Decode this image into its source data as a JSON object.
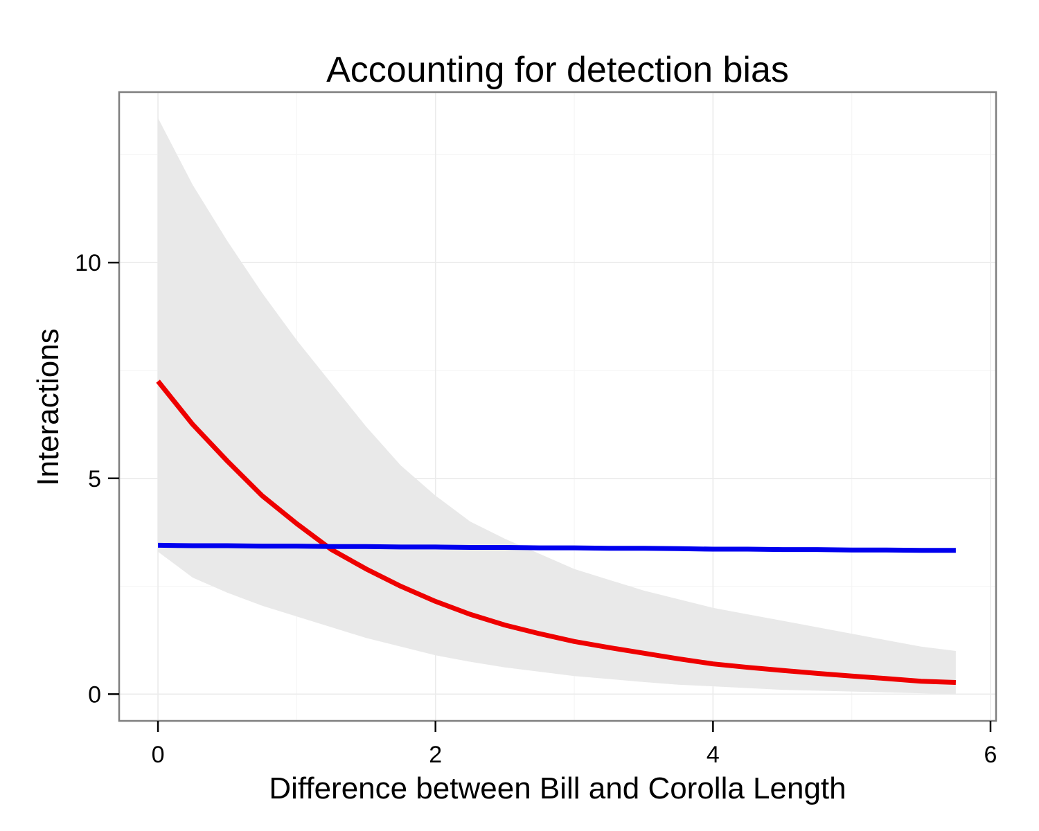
{
  "chart_data": {
    "type": "line",
    "title": "Accounting for detection bias",
    "xlabel": "Difference between Bill and Corolla Length",
    "ylabel": "Interactions",
    "xlim": [
      -0.28,
      6.04
    ],
    "ylim": [
      -0.62,
      13.95
    ],
    "x_ticks": [
      0,
      2,
      4,
      6
    ],
    "y_ticks": [
      0,
      5,
      10
    ],
    "grid": true,
    "legend": "none",
    "x": [
      0.0,
      0.25,
      0.5,
      0.75,
      1.0,
      1.25,
      1.5,
      1.75,
      2.0,
      2.25,
      2.5,
      2.75,
      3.0,
      3.25,
      3.5,
      3.75,
      4.0,
      4.25,
      4.5,
      4.75,
      5.0,
      5.25,
      5.5,
      5.75
    ],
    "series": [
      {
        "color": "#ee0000",
        "values": [
          7.25,
          6.25,
          5.4,
          4.6,
          3.95,
          3.35,
          2.9,
          2.5,
          2.15,
          1.85,
          1.6,
          1.4,
          1.22,
          1.08,
          0.95,
          0.82,
          0.7,
          0.62,
          0.55,
          0.48,
          0.42,
          0.36,
          0.3,
          0.27
        ]
      },
      {
        "color": "#0000ee",
        "values": [
          3.45,
          3.44,
          3.44,
          3.43,
          3.43,
          3.42,
          3.42,
          3.41,
          3.41,
          3.4,
          3.4,
          3.39,
          3.39,
          3.38,
          3.38,
          3.37,
          3.36,
          3.36,
          3.35,
          3.35,
          3.34,
          3.34,
          3.33,
          3.33
        ]
      }
    ],
    "band": {
      "color": "#e9e9e9",
      "upper": [
        13.35,
        11.8,
        10.5,
        9.3,
        8.2,
        7.2,
        6.2,
        5.3,
        4.6,
        4.0,
        3.6,
        3.25,
        2.9,
        2.65,
        2.4,
        2.2,
        2.0,
        1.85,
        1.7,
        1.55,
        1.4,
        1.25,
        1.1,
        1.0
      ],
      "lower": [
        3.3,
        2.7,
        2.35,
        2.05,
        1.8,
        1.55,
        1.3,
        1.1,
        0.9,
        0.75,
        0.62,
        0.52,
        0.42,
        0.35,
        0.28,
        0.22,
        0.18,
        0.14,
        0.1,
        0.08,
        0.06,
        0.04,
        0.02,
        0.0
      ]
    }
  }
}
